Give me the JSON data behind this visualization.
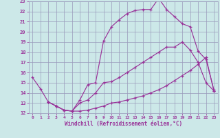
{
  "xlabel": "Windchill (Refroidissement éolien,°C)",
  "bg_color": "#cce8e8",
  "grid_color": "#9999bb",
  "line_color": "#993399",
  "xlim": [
    -0.5,
    23.5
  ],
  "ylim": [
    12,
    23
  ],
  "xticks": [
    0,
    1,
    2,
    3,
    4,
    5,
    6,
    7,
    8,
    9,
    10,
    11,
    12,
    13,
    14,
    15,
    16,
    17,
    18,
    19,
    20,
    21,
    22,
    23
  ],
  "yticks": [
    12,
    13,
    14,
    15,
    16,
    17,
    18,
    19,
    20,
    21,
    22,
    23
  ],
  "line1_x": [
    0,
    1,
    2,
    3,
    4,
    5,
    6,
    7,
    8,
    9,
    10,
    11,
    12,
    13,
    14,
    15,
    16,
    17,
    18,
    19,
    20,
    21,
    22,
    23
  ],
  "line1_y": [
    15.5,
    14.4,
    13.1,
    12.7,
    12.3,
    12.2,
    13.3,
    14.8,
    15.0,
    19.1,
    20.5,
    21.2,
    21.8,
    22.1,
    22.2,
    22.2,
    23.3,
    22.2,
    21.5,
    20.8,
    20.5,
    18.1,
    17.3,
    14.3
  ],
  "line2_x": [
    2,
    3,
    4,
    5,
    6,
    7,
    8,
    9,
    10,
    11,
    12,
    13,
    14,
    15,
    16,
    17,
    18,
    19,
    20,
    21,
    22,
    23
  ],
  "line2_y": [
    13.1,
    12.7,
    12.3,
    12.2,
    12.2,
    12.3,
    12.5,
    12.7,
    13.0,
    13.1,
    13.3,
    13.5,
    13.7,
    14.0,
    14.3,
    14.7,
    15.2,
    15.7,
    16.2,
    16.8,
    17.5,
    14.2
  ],
  "line3_x": [
    2,
    3,
    4,
    5,
    6,
    7,
    8,
    9,
    10,
    11,
    12,
    13,
    14,
    15,
    16,
    17,
    18,
    19,
    20,
    21,
    22,
    23
  ],
  "line3_y": [
    13.1,
    12.7,
    12.3,
    12.2,
    13.0,
    13.3,
    14.0,
    15.0,
    15.1,
    15.5,
    16.0,
    16.5,
    17.0,
    17.5,
    18.0,
    18.5,
    18.5,
    19.0,
    18.2,
    17.0,
    15.0,
    14.2
  ]
}
